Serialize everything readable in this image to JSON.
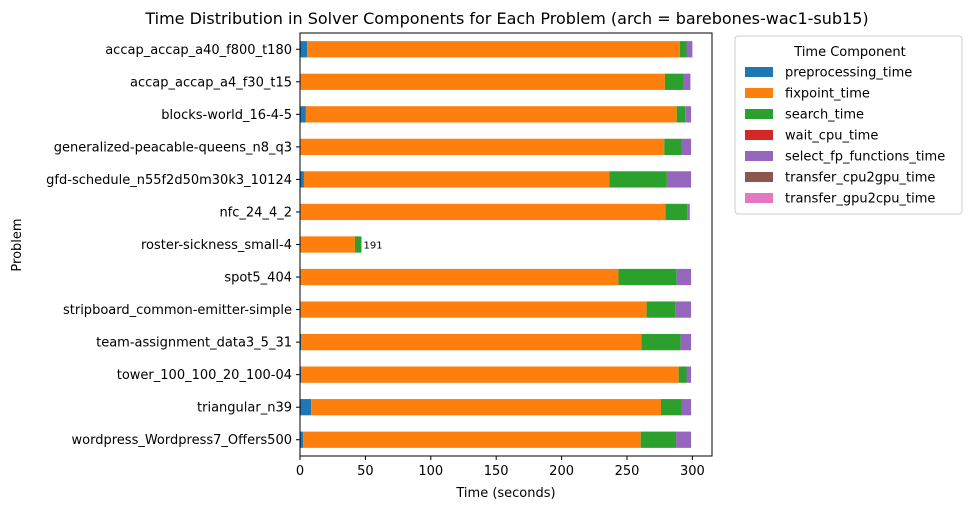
{
  "chart_data": {
    "type": "bar",
    "orientation": "horizontal",
    "stacked": true,
    "title": "Time Distribution in Solver Components for Each Problem (arch = barebones-wac1-sub15)",
    "xlabel": "Time (seconds)",
    "ylabel": "Problem",
    "xlim": [
      0,
      315
    ],
    "xticks": [
      0,
      50,
      100,
      150,
      200,
      250,
      300
    ],
    "grid": false,
    "legend": {
      "title": "Time Component",
      "placement": "outside-top-right"
    },
    "categories": [
      "accap_accap_a40_f800_t180",
      "accap_accap_a4_f30_t15",
      "blocks-world_16-4-5",
      "generalized-peacable-queens_n8_q3",
      "gfd-schedule_n55f2d50m30k3_10124",
      "nfc_24_4_2",
      "roster-sickness_small-4",
      "spot5_404",
      "stripboard_common-emitter-simple",
      "team-assignment_data3_5_31",
      "tower_100_100_20_100-04",
      "triangular_n39",
      "wordpress_Wordpress7_Offers500"
    ],
    "series": [
      {
        "name": "preprocessing_time",
        "color": "#1f77b4",
        "values": [
          5.5,
          0.5,
          4.5,
          0.5,
          3.0,
          0.5,
          0.5,
          0.5,
          0.5,
          1.0,
          1.0,
          8.5,
          2.5
        ]
      },
      {
        "name": "fixpoint_time",
        "color": "#ff7f0e",
        "values": [
          285.0,
          278.5,
          283.5,
          278.0,
          233.5,
          279.0,
          41.5,
          243.0,
          264.5,
          260.0,
          288.5,
          267.5,
          258.0
        ]
      },
      {
        "name": "search_time",
        "color": "#2ca02c",
        "values": [
          5.0,
          14.5,
          6.5,
          13.5,
          44.0,
          16.5,
          5.0,
          44.5,
          22.0,
          30.0,
          6.0,
          16.0,
          27.0
        ]
      },
      {
        "name": "wait_cpu_time",
        "color": "#d62728",
        "values": [
          0,
          0,
          0,
          0,
          0,
          0,
          0,
          0,
          0,
          0,
          0,
          0,
          0
        ]
      },
      {
        "name": "select_fp_functions_time",
        "color": "#9467bd",
        "values": [
          4.5,
          5.0,
          4.5,
          7.0,
          18.5,
          2.0,
          0,
          11.0,
          12.0,
          8.0,
          3.5,
          7.0,
          11.5
        ]
      },
      {
        "name": "transfer_cpu2gpu_time",
        "color": "#8c564b",
        "values": [
          0,
          0,
          0,
          0,
          0,
          0,
          0,
          0,
          0,
          0,
          0,
          0,
          0
        ]
      },
      {
        "name": "transfer_gpu2cpu_time",
        "color": "#e377c2",
        "values": [
          0,
          0,
          0,
          0,
          0,
          0,
          0,
          0,
          0,
          0,
          0,
          0,
          0
        ]
      }
    ],
    "annotations": [
      {
        "category": "roster-sickness_small-4",
        "text": "191"
      }
    ]
  }
}
